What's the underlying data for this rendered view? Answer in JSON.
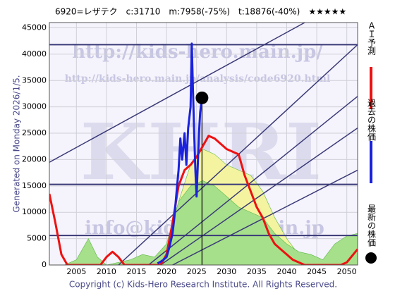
{
  "chart_data": {
    "type": "line",
    "header": "6920=レザテク　c:31710　m:7958(-75%)　t:18876(-40%)　★★★★★",
    "ylabel": "Generated on Monday 2026/1/5.",
    "footer": "Copyright (c) Kids-Hero Research Institute. All Rights Reserved.",
    "watermarks": [
      "http://kids-hero.main.jp/",
      "http://kids-hero.main.jp/analysis/code6920.html",
      "KHRI",
      "info@kids-hero.main.jp"
    ],
    "xlim": [
      2000.5,
      2051.8
    ],
    "ylim": [
      0,
      46000
    ],
    "xticks": [
      2005,
      2010,
      2015,
      2020,
      2025,
      2030,
      2035,
      2040,
      2045,
      2050
    ],
    "yticks": [
      0,
      5000,
      10000,
      15000,
      20000,
      25000,
      30000,
      35000,
      40000,
      45000
    ],
    "grid": true,
    "levels": [
      41800,
      15300,
      5600
    ],
    "level_color": "#3a3a78",
    "trend_color": "#3a3a78",
    "trend_lines": [
      {
        "x": [
          2000.5,
          2043
        ],
        "values": [
          19500,
          46000
        ]
      },
      {
        "x": [
          2012,
          2051.8
        ],
        "values": [
          0,
          41800
        ]
      },
      {
        "x": [
          2017,
          2051.8
        ],
        "values": [
          0,
          32000
        ]
      },
      {
        "x": [
          2019,
          2051.8
        ],
        "values": [
          0,
          26000
        ]
      },
      {
        "x": [
          2021,
          2051.8
        ],
        "values": [
          0,
          18000
        ]
      }
    ],
    "series": [
      {
        "style": "area",
        "color": "#f4f4a0",
        "x": [
          2018,
          2020,
          2022,
          2024,
          2026,
          2028,
          2030,
          2032,
          2034,
          2036,
          2038,
          2040,
          2042,
          2044
        ],
        "values": [
          0,
          3000,
          12000,
          19000,
          22000,
          21000,
          19000,
          18000,
          17000,
          14000,
          9000,
          5000,
          2000,
          0
        ]
      },
      {
        "style": "area",
        "color": "#a6e08a",
        "x": [
          2003,
          2005,
          2007,
          2008.5,
          2010,
          2012,
          2014,
          2016,
          2018,
          2020,
          2022,
          2024,
          2026,
          2028,
          2030,
          2032,
          2034,
          2036,
          2038,
          2040,
          2042,
          2044,
          2046,
          2048,
          2050,
          2051.8
        ],
        "values": [
          0,
          1000,
          5000,
          1500,
          0,
          500,
          1000,
          2000,
          1500,
          4000,
          12000,
          15000,
          16000,
          15000,
          13000,
          11000,
          10000,
          9000,
          6000,
          4000,
          2500,
          2000,
          1000,
          4000,
          5500,
          6000
        ]
      },
      {
        "style": "line",
        "name": "ＡＩ予測",
        "color": "#ee1111",
        "x": [
          2000.5,
          2001.5,
          2002.5,
          2003.5,
          2009,
          2010,
          2011,
          2012,
          2013,
          2019,
          2020,
          2021,
          2022,
          2023,
          2024,
          2025,
          2026,
          2027,
          2028,
          2029,
          2030,
          2031,
          2032,
          2033,
          2034,
          2035,
          2036,
          2037,
          2038,
          2039,
          2040,
          2041,
          2042,
          2043,
          2049,
          2050,
          2051.8
        ],
        "values": [
          13500,
          8000,
          2000,
          0,
          0,
          1500,
          2500,
          1500,
          0,
          0,
          2000,
          8000,
          15000,
          18000,
          19000,
          20500,
          22500,
          24500,
          24000,
          23000,
          22000,
          21500,
          21000,
          17000,
          14000,
          11000,
          9000,
          6000,
          4000,
          3000,
          2000,
          1000,
          500,
          0,
          0,
          500,
          3000
        ]
      },
      {
        "style": "line",
        "name": "過去の株価",
        "color": "#1a22dd",
        "x": [
          2018.5,
          2019,
          2019.5,
          2020,
          2020.5,
          2021,
          2021.3,
          2021.6,
          2022,
          2022.3,
          2022.6,
          2023,
          2023.3,
          2023.6,
          2024,
          2024.2,
          2024.4,
          2024.6,
          2024.8,
          2025,
          2025.2,
          2025.4,
          2025.6,
          2025.9
        ],
        "values": [
          300,
          600,
          1000,
          1500,
          3500,
          6000,
          9000,
          13000,
          18000,
          24000,
          20000,
          25000,
          19000,
          26000,
          30000,
          42000,
          33000,
          25000,
          18000,
          13000,
          19000,
          25000,
          29000,
          31710
        ]
      }
    ],
    "latest": {
      "name": "最新の株価",
      "color": "#000000",
      "x": 2025.9,
      "value": 31710
    },
    "now_x": 2025.9
  }
}
